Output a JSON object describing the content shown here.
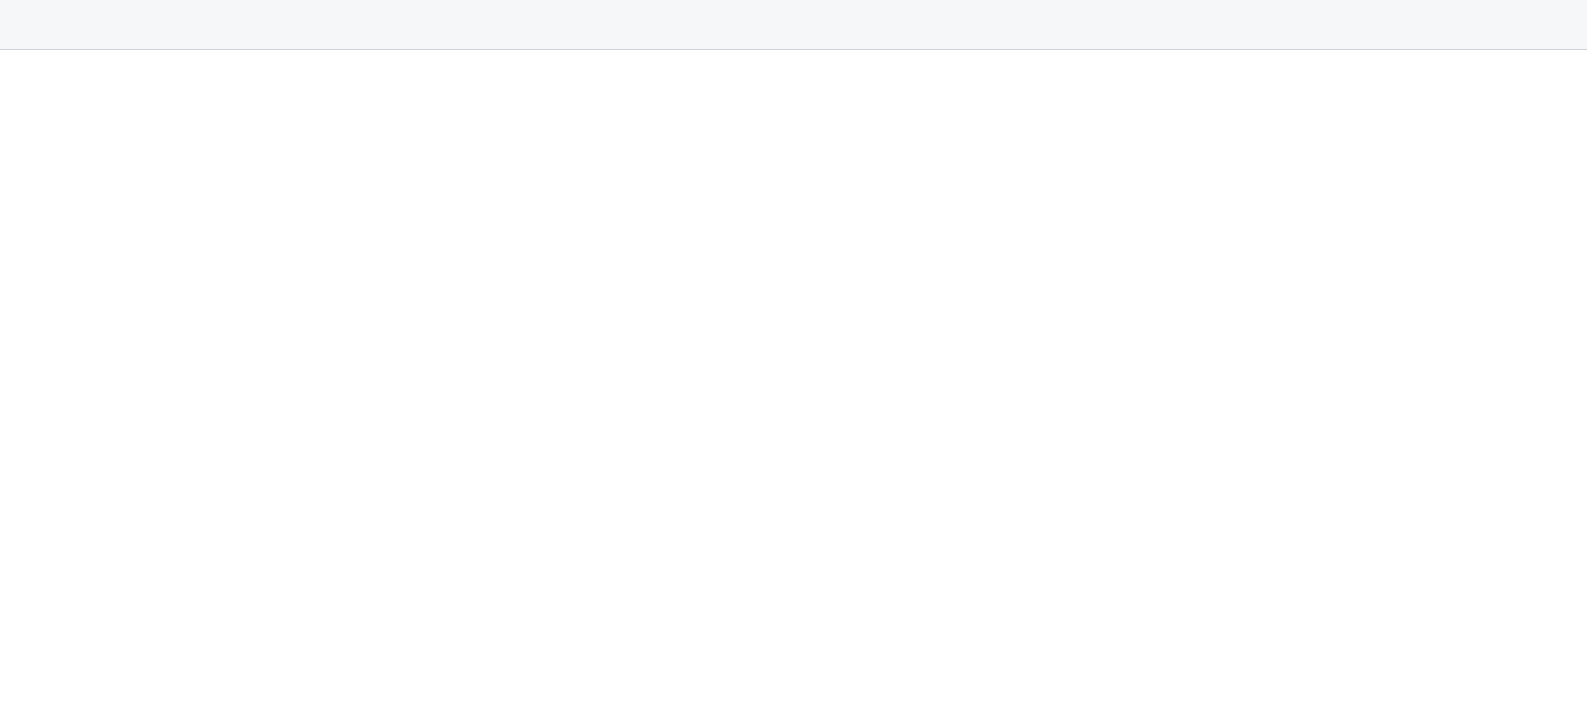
{
  "header": {
    "title": ""
  },
  "content": {
    "status": ""
  }
}
